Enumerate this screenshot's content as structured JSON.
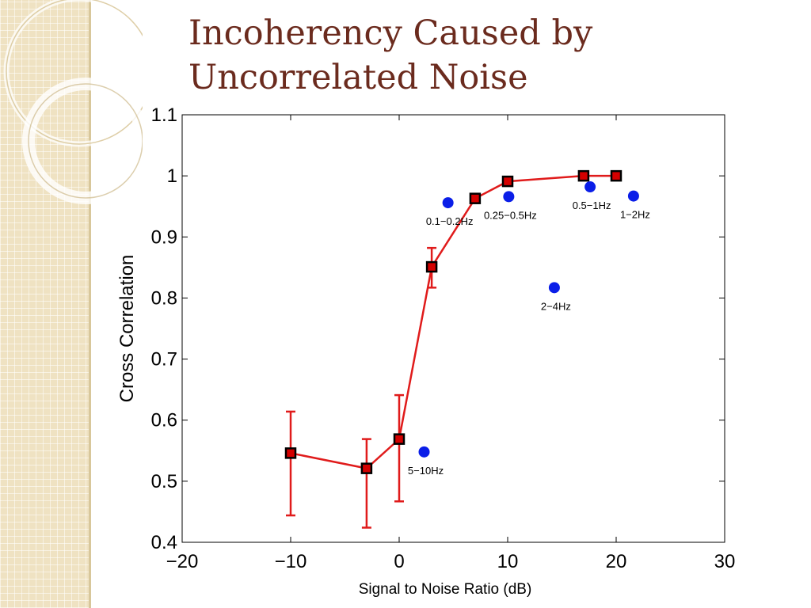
{
  "slide": {
    "title_line1": "Incoherency Caused by",
    "title_line2": "Uncorrelated Noise"
  },
  "colors": {
    "title": "#6b2b1e",
    "band": "#efe2c2",
    "series_line": "#e01b1b",
    "series_marker": "#d40000",
    "scatter": "#0a1ee8"
  },
  "chart_data": {
    "type": "scatter",
    "xlabel": "Signal to Noise Ratio (dB)",
    "ylabel": "Cross Correlation",
    "xlim": [
      -20,
      30
    ],
    "ylim": [
      0.4,
      1.1
    ],
    "xticks": [
      "−20",
      "−10",
      "0",
      "10",
      "20",
      "30"
    ],
    "yticks": [
      "0.4",
      "0.5",
      "0.6",
      "0.7",
      "0.8",
      "0.9",
      "1",
      "1.1"
    ],
    "grid": false,
    "series": [
      {
        "type": "line_errorbar",
        "x": [
          -10,
          -3,
          0,
          3,
          7,
          10,
          17,
          20
        ],
        "y": [
          0.546,
          0.521,
          0.569,
          0.851,
          0.963,
          0.991,
          1.0,
          1.0
        ],
        "err_low": [
          0.444,
          0.424,
          0.467,
          0.817,
          0.957,
          0.99,
          1.0,
          1.0
        ],
        "err_high": [
          0.614,
          0.569,
          0.641,
          0.882,
          0.968,
          0.993,
          1.0,
          1.0
        ]
      },
      {
        "type": "scatter",
        "points": [
          {
            "x": 2.3,
            "y": 0.548,
            "label": "5−10Hz"
          },
          {
            "x": 4.5,
            "y": 0.956,
            "label": "0.1−0.2Hz"
          },
          {
            "x": 10.1,
            "y": 0.966,
            "label": "0.25−0.5Hz"
          },
          {
            "x": 14.3,
            "y": 0.817,
            "label": "2−4Hz"
          },
          {
            "x": 17.6,
            "y": 0.982,
            "label": "0.5−1Hz"
          },
          {
            "x": 21.6,
            "y": 0.967,
            "label": "1−2Hz"
          }
        ]
      }
    ]
  }
}
